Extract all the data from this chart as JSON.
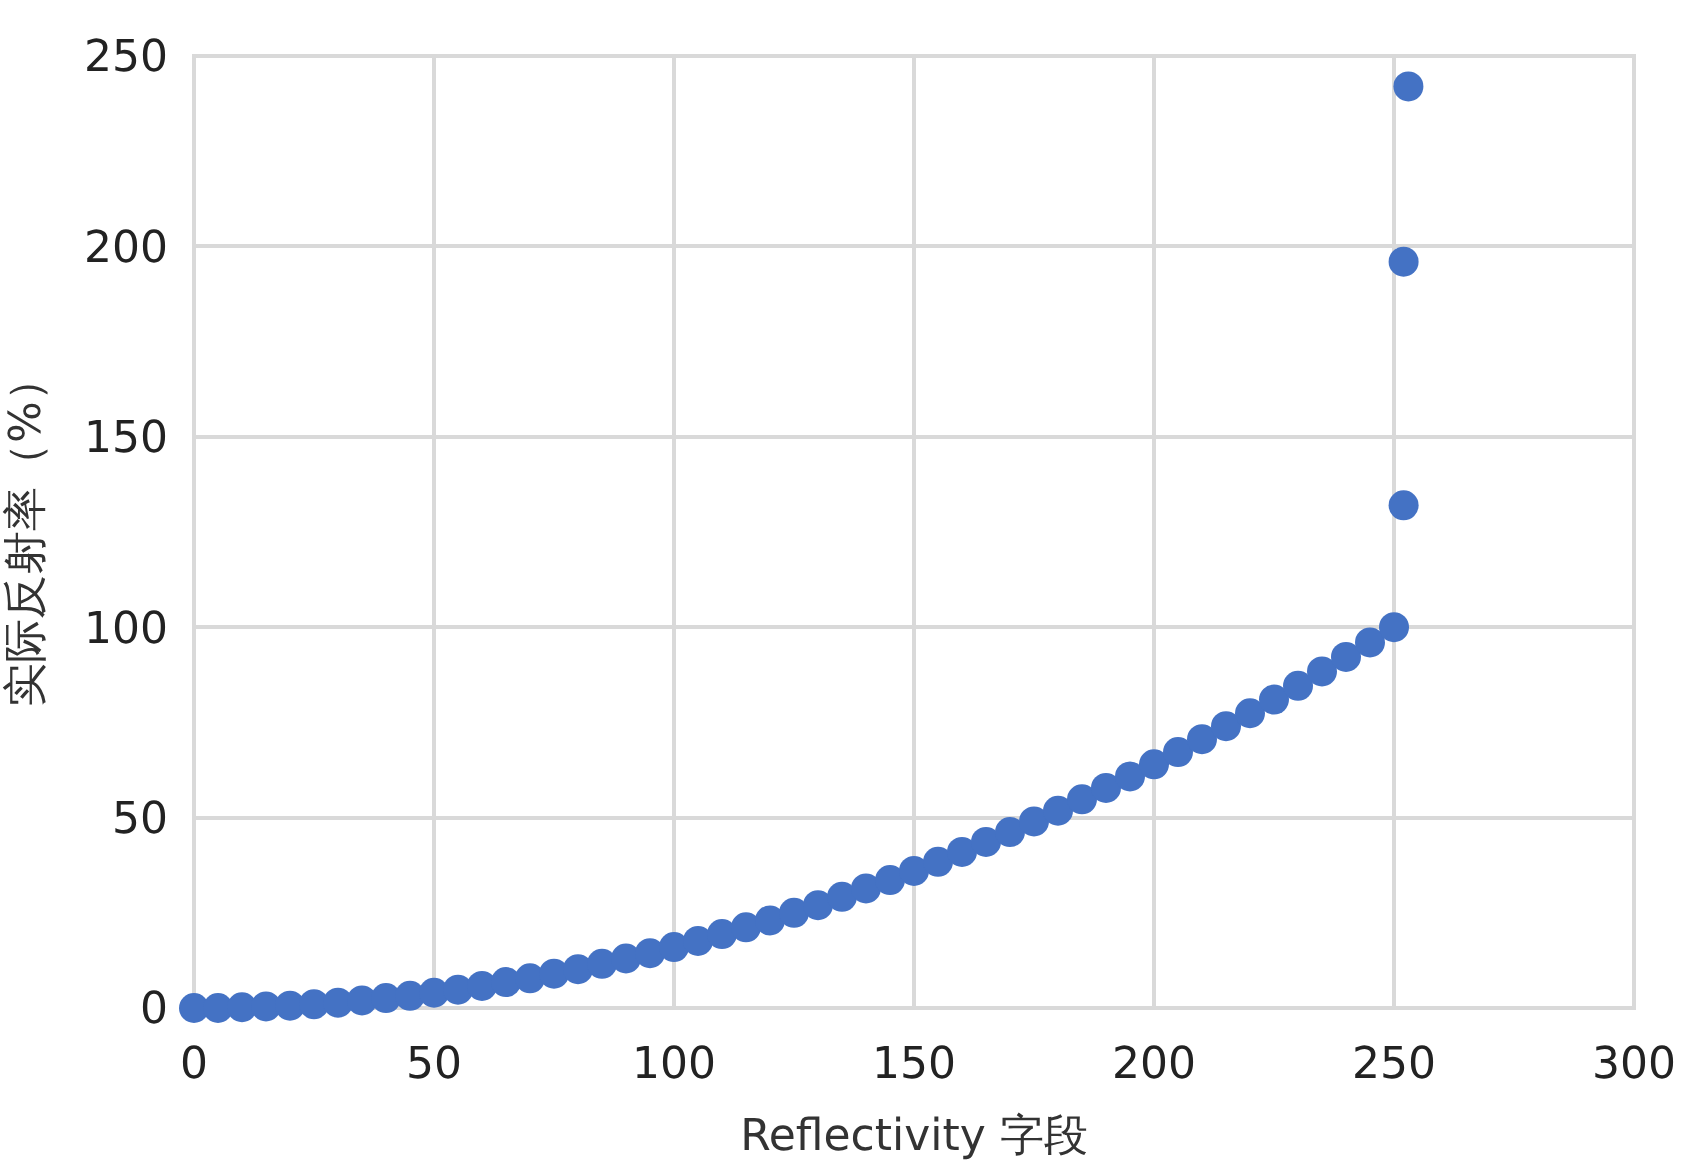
{
  "chart_data": {
    "type": "scatter",
    "xlabel": "Reflectivity 字段",
    "ylabel": "实际反射率（%）",
    "x": [
      0,
      5,
      10,
      15,
      20,
      25,
      30,
      35,
      40,
      45,
      50,
      55,
      60,
      65,
      70,
      75,
      80,
      85,
      90,
      95,
      100,
      105,
      110,
      115,
      120,
      125,
      130,
      135,
      140,
      145,
      150,
      155,
      160,
      165,
      170,
      175,
      180,
      185,
      190,
      195,
      200,
      205,
      210,
      215,
      220,
      225,
      230,
      235,
      240,
      245,
      250,
      252,
      252,
      253
    ],
    "series": [
      {
        "color": "#4472c4",
        "values": [
          0,
          0,
          0.2,
          0.4,
          0.6,
          1,
          1.4,
          2,
          2.6,
          3.2,
          4,
          4.8,
          5.8,
          6.8,
          7.8,
          9,
          10.2,
          11.6,
          13,
          14.4,
          16,
          17.6,
          19.4,
          21.2,
          23,
          25,
          27,
          29.2,
          31.4,
          33.6,
          36,
          38.4,
          41,
          43.6,
          46.2,
          49,
          51.8,
          54.8,
          57.8,
          60.8,
          64,
          67.2,
          70.6,
          74,
          77.4,
          81,
          84.6,
          88.4,
          92.2,
          96,
          100,
          132,
          196,
          242
        ]
      }
    ],
    "xlim": [
      0,
      300
    ],
    "xticks": [
      0,
      50,
      100,
      150,
      200,
      250,
      300
    ],
    "ylim": [
      0,
      250
    ],
    "yticks": [
      0,
      50,
      100,
      150,
      200,
      250
    ],
    "grid": true,
    "marker": "circle",
    "legend": false
  }
}
